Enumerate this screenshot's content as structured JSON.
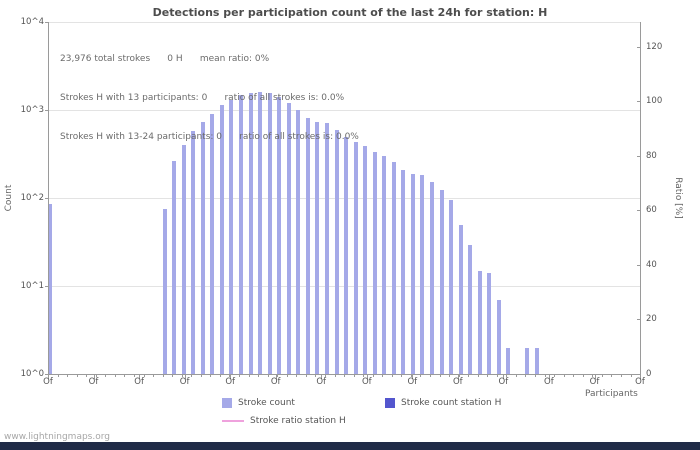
{
  "header": {
    "title": "Detections per participation count of the last 24h for station: H"
  },
  "annotation": {
    "line1": "23,976 total strokes      0 H      mean ratio: 0%",
    "line2": "Strokes H with 13 participants: 0      ratio of all strokes is: 0.0%",
    "line3": "Strokes H with 13-24 participants: 0      ratio of all strokes is: 0.0%"
  },
  "axes": {
    "left_label": "Count",
    "right_label": "Ratio [%]",
    "x_label": "Participants"
  },
  "legend": {
    "items": [
      {
        "label": "Stroke count",
        "color": "#a5a9e8",
        "marker": "square"
      },
      {
        "label": "Stroke count station H",
        "color": "#5456ce",
        "marker": "square"
      },
      {
        "label": "Stroke ratio station H",
        "color": "#efa2dd",
        "marker": "line"
      }
    ]
  },
  "watermark": "www.lightningmaps.org",
  "chart_data": {
    "type": "bar",
    "title": "Detections per participation count of the last 24h for station: H",
    "xlabel": "Participants",
    "ylabel_left": "Count",
    "ylabel_right": "Ratio [%]",
    "y_scale": "log",
    "y_left_ticks": [
      "10^4",
      "10^3",
      "10^2",
      "10^1",
      "10^0"
    ],
    "y_left_range": [
      1,
      10000
    ],
    "y_right_ticks": [
      120,
      100,
      80,
      60,
      40,
      20,
      0
    ],
    "y_right_range": [
      0,
      129
    ],
    "x_tick_label": "Of",
    "x_major_tick_count": 14,
    "slot_count": 62,
    "grid": true,
    "legend_position": "bottom",
    "series": [
      {
        "name": "Stroke count",
        "color": "#a5a9e8",
        "counts": [
          85,
          0,
          0,
          0,
          0,
          0,
          0,
          0,
          0,
          0,
          0,
          0,
          75,
          260,
          400,
          580,
          730,
          900,
          1140,
          1300,
          1480,
          1560,
          1600,
          1560,
          1400,
          1200,
          1000,
          810,
          730,
          710,
          590,
          490,
          435,
          390,
          330,
          300,
          257,
          210,
          186,
          182,
          151,
          123,
          95,
          49,
          29,
          15,
          14,
          7,
          2,
          0,
          2,
          2,
          0,
          0,
          0,
          0,
          0,
          0,
          0,
          0,
          0,
          0
        ]
      },
      {
        "name": "Stroke count station H",
        "color": "#5456ce",
        "total": 0,
        "counts_all_zero": true
      },
      {
        "name": "Stroke ratio station H",
        "color": "#efa2dd",
        "ratio_percent_all": 0
      }
    ]
  }
}
